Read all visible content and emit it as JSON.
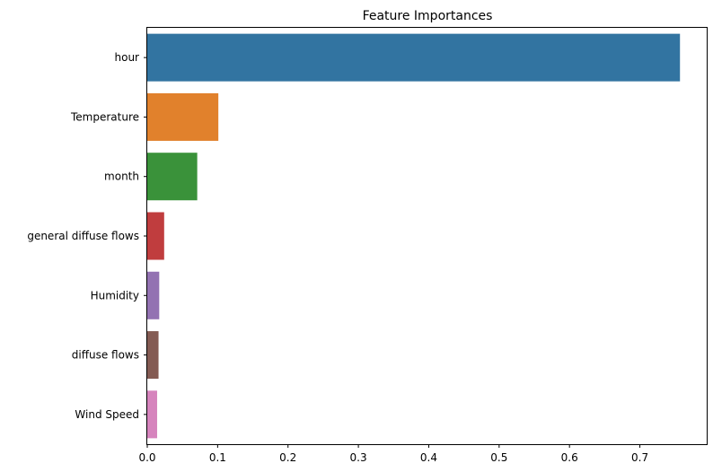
{
  "chart_data": {
    "type": "bar",
    "orientation": "horizontal",
    "title": "Feature Importances",
    "xlabel": "",
    "ylabel": "",
    "categories": [
      "hour",
      "Temperature",
      "month",
      "general diffuse flows",
      "Humidity",
      "diffuse flows",
      "Wind Speed"
    ],
    "values": [
      0.757,
      0.101,
      0.071,
      0.024,
      0.017,
      0.016,
      0.014
    ],
    "colors": [
      "#3274a1",
      "#e1812c",
      "#3a923a",
      "#c03d3e",
      "#9372b2",
      "#845b53",
      "#d684bd"
    ],
    "xlim": [
      0,
      0.795
    ],
    "xticks": [
      0.0,
      0.1,
      0.2,
      0.3,
      0.4,
      0.5,
      0.6,
      0.7
    ],
    "xtick_labels": [
      "0.0",
      "0.1",
      "0.2",
      "0.3",
      "0.4",
      "0.5",
      "0.6",
      "0.7"
    ],
    "grid": false,
    "legend": "none"
  }
}
